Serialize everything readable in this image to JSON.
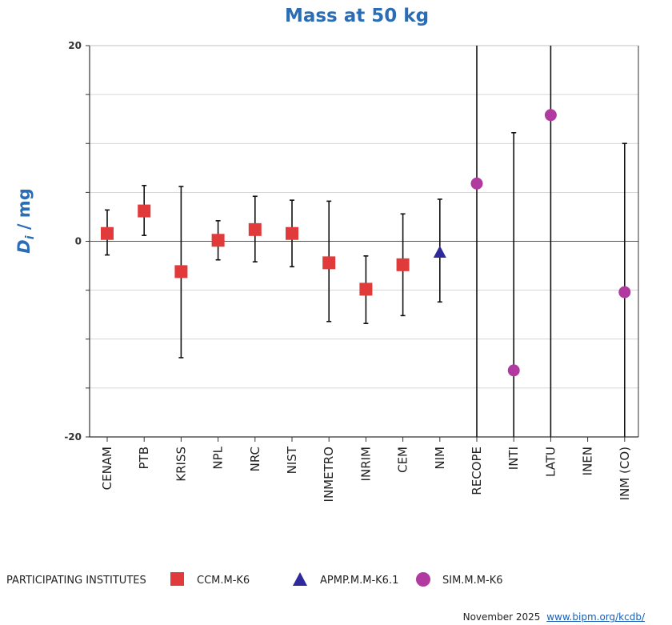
{
  "chart_data": {
    "type": "scatter",
    "title": "Mass at 50 kg",
    "ylabel_main": "D",
    "ylabel_sub": "i",
    "ylabel_unit": " / mg",
    "ylim": [
      -20,
      20
    ],
    "yticks_labeled": [
      20,
      0,
      -20
    ],
    "ygrid": [
      20,
      15,
      10,
      5,
      0,
      -5,
      -10,
      -15,
      -20
    ],
    "categories": [
      "CENAM",
      "PTB",
      "KRISS",
      "NPL",
      "NRC",
      "NIST",
      "INMETRO",
      "INRIM",
      "CEM",
      "NIM",
      "RECOPE",
      "INTI",
      "LATU",
      "INEN",
      "INM (CO)"
    ],
    "series": [
      {
        "name": "CCM.M-K6",
        "marker": "square",
        "color": "#e03a3a",
        "points": [
          {
            "label": "CENAM",
            "value": 0.8,
            "low": -1.4,
            "high": 3.2
          },
          {
            "label": "PTB",
            "value": 3.1,
            "low": 0.6,
            "high": 5.7
          },
          {
            "label": "KRISS",
            "value": -3.1,
            "low": -11.9,
            "high": 5.6
          },
          {
            "label": "NPL",
            "value": 0.1,
            "low": -1.9,
            "high": 2.1
          },
          {
            "label": "NRC",
            "value": 1.2,
            "low": -2.1,
            "high": 4.6
          },
          {
            "label": "NIST",
            "value": 0.8,
            "low": -2.6,
            "high": 4.2
          },
          {
            "label": "INMETRO",
            "value": -2.2,
            "low": -8.2,
            "high": 4.1
          },
          {
            "label": "INRIM",
            "value": -4.9,
            "low": -8.4,
            "high": -1.5
          },
          {
            "label": "CEM",
            "value": -2.4,
            "low": -7.6,
            "high": 2.8
          }
        ]
      },
      {
        "name": "APMP.M.M-K6.1",
        "marker": "triangle",
        "color": "#2e2a9c",
        "points": [
          {
            "label": "NIM",
            "value": -1.1,
            "low": -6.2,
            "high": 4.3
          }
        ]
      },
      {
        "name": "SIM.M.M-K6",
        "marker": "circle",
        "color": "#b03aa0",
        "points": [
          {
            "label": "RECOPE",
            "value": 5.9,
            "low": -20,
            "high": 20
          },
          {
            "label": "INTI",
            "value": -13.2,
            "low": -20,
            "high": 11.1
          },
          {
            "label": "LATU",
            "value": 12.9,
            "low": -20,
            "high": 20
          },
          {
            "label": "INM (CO)",
            "value": -5.2,
            "low": -20,
            "high": 10
          }
        ]
      }
    ]
  },
  "legend": {
    "heading": "PARTICIPATING INSTITUTES",
    "items": [
      {
        "label": "CCM.M-K6",
        "marker": "square",
        "color": "#e03a3a"
      },
      {
        "label": "APMP.M.M-K6.1",
        "marker": "triangle",
        "color": "#2e2a9c"
      },
      {
        "label": "SIM.M.M-K6",
        "marker": "circle",
        "color": "#b03aa0"
      }
    ]
  },
  "footer": {
    "date": "November 2025",
    "link": "www.bipm.org/kcdb/"
  },
  "colors": {
    "title": "#2a6db5",
    "axis": "#333333",
    "grid": "#c8c8c8"
  }
}
